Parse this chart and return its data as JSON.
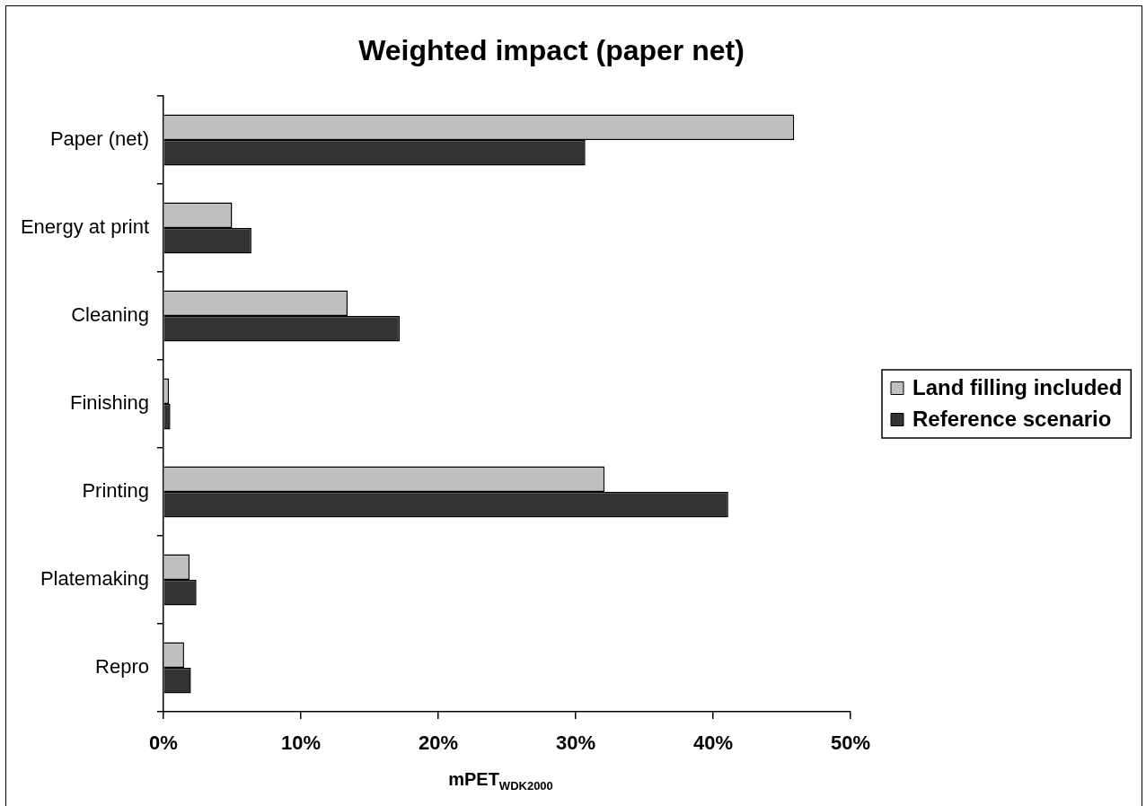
{
  "chart_data": {
    "type": "bar",
    "orientation": "horizontal",
    "title": "Weighted impact (paper net)",
    "xlabel": "mPET$_{WDK2000}$",
    "categories": [
      "Paper (net)",
      "Energy at print",
      "Cleaning",
      "Finishing",
      "Printing",
      "Platemaking",
      "Repro"
    ],
    "series": [
      {
        "name": "Land filling included",
        "color": "#c0c0c0",
        "values": [
          45.9,
          5.0,
          13.4,
          0.4,
          32.1,
          1.9,
          1.5
        ]
      },
      {
        "name": "Reference scenario",
        "color": "#333333",
        "values": [
          30.7,
          6.4,
          17.2,
          0.5,
          41.1,
          2.4,
          2.0
        ]
      }
    ],
    "xlim": [
      0,
      50
    ],
    "xticks": [
      {
        "value": 0,
        "label": "0%"
      },
      {
        "value": 10,
        "label": "10%"
      },
      {
        "value": 20,
        "label": "20%"
      },
      {
        "value": 30,
        "label": "30%"
      },
      {
        "value": 40,
        "label": "40%"
      },
      {
        "value": 50,
        "label": "50%"
      }
    ],
    "legend": "right"
  }
}
